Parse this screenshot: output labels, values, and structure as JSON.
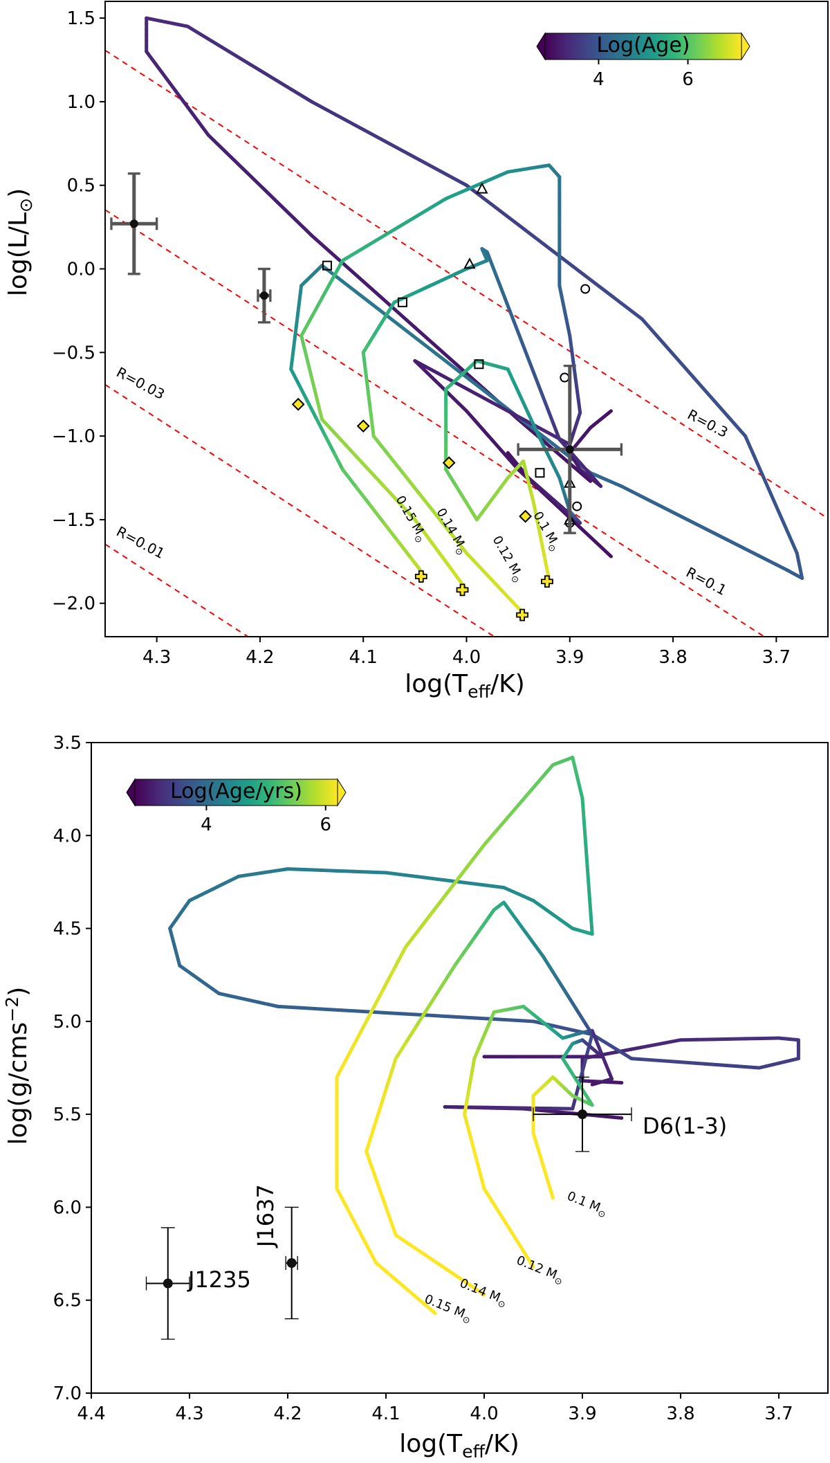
{
  "colors": {
    "viridis": [
      "#440154",
      "#482878",
      "#3e4989",
      "#31688e",
      "#26828e",
      "#1f9e89",
      "#35b779",
      "#6ece58",
      "#b5de2b",
      "#fde725"
    ],
    "iso_radius": "#ff0000",
    "errorbar_top": "#555555",
    "errorbar_bottom": "#000000"
  },
  "chart_data": [
    {
      "type": "line",
      "panel": "top",
      "title": "",
      "xlabel": "log(T",
      "xlabel_sub": "eff",
      "xlabel_tail": "/K)",
      "ylabel": "log(L/L",
      "ylabel_sun": "⊙",
      "ylabel_tail": ")",
      "xlim": [
        4.35,
        3.65
      ],
      "ylim": [
        -2.2,
        1.6
      ],
      "xticks": [
        4.3,
        4.2,
        4.1,
        4.0,
        3.9,
        3.8,
        3.7
      ],
      "xticklabels": [
        "4.3",
        "4.2",
        "4.1",
        "4.0",
        "3.9",
        "3.8",
        "3.7"
      ],
      "yticks": [
        1.5,
        1.0,
        0.5,
        0.0,
        -0.5,
        -1.0,
        -1.5,
        -2.0
      ],
      "yticklabels": [
        "1.5",
        "1.0",
        "0.5",
        "0.0",
        "−0.5",
        "−1.0",
        "−1.5",
        "−2.0"
      ],
      "colorbar": {
        "label": "Log(Age)",
        "ticks": [
          4,
          6
        ],
        "ticklabels": [
          "4",
          "6"
        ],
        "range": [
          2.8,
          7.2
        ]
      },
      "radius_lines": [
        {
          "label": "R=0.3",
          "R": 0.3
        },
        {
          "label": "R=0.1",
          "R": 0.1
        },
        {
          "label": "R=0.03",
          "R": 0.03
        },
        {
          "label": "R=0.01",
          "R": 0.01
        }
      ],
      "tracks": [
        {
          "name": "0.15 M☉",
          "label": "0.15 M",
          "points": [
            [
              3.88,
              -1.27,
              3.0
            ],
            [
              3.95,
              -0.9,
              3.05
            ],
            [
              4.05,
              -0.35,
              3.1
            ],
            [
              4.15,
              0.2,
              3.15
            ],
            [
              4.25,
              0.8,
              3.2
            ],
            [
              4.31,
              1.3,
              3.25
            ],
            [
              4.31,
              1.5,
              3.3
            ],
            [
              4.27,
              1.45,
              3.35
            ],
            [
              4.15,
              1.0,
              3.45
            ],
            [
              4.0,
              0.5,
              3.6
            ],
            [
              3.83,
              -0.3,
              3.8
            ],
            [
              3.73,
              -1.0,
              3.9
            ],
            [
              3.68,
              -1.7,
              4.0
            ],
            [
              3.675,
              -1.85,
              4.05
            ],
            [
              3.69,
              -1.8,
              4.1
            ],
            [
              3.85,
              -1.3,
              4.2
            ],
            [
              3.88,
              -1.22,
              4.3
            ],
            [
              4.14,
              0.02,
              4.6
            ],
            [
              4.16,
              -0.1,
              4.8
            ],
            [
              4.17,
              -0.6,
              5.1
            ],
            [
              4.12,
              -1.2,
              6.0
            ],
            [
              4.04,
              -1.84,
              6.8
            ]
          ]
        },
        {
          "name": "0.14 M☉",
          "label": "0.14 M",
          "points": [
            [
              3.86,
              -1.72,
              3.0
            ],
            [
              3.95,
              -1.2,
              3.05
            ],
            [
              4.0,
              -0.85,
              3.1
            ],
            [
              4.05,
              -0.55,
              3.15
            ],
            [
              3.9,
              -1.05,
              3.3
            ],
            [
              3.89,
              -0.86,
              3.5
            ],
            [
              3.9,
              -0.4,
              3.9
            ],
            [
              3.91,
              -0.1,
              4.2
            ],
            [
              3.91,
              0.55,
              4.5
            ],
            [
              3.92,
              0.62,
              4.7
            ],
            [
              3.96,
              0.58,
              5.0
            ],
            [
              4.02,
              0.42,
              5.3
            ],
            [
              4.12,
              0.05,
              5.7
            ],
            [
              4.16,
              -0.4,
              6.1
            ],
            [
              4.14,
              -0.9,
              6.4
            ],
            [
              4.05,
              -1.5,
              6.7
            ],
            [
              4.0,
              -1.92,
              6.9
            ]
          ]
        },
        {
          "name": "0.12 M☉",
          "label": "0.12 M",
          "points": [
            [
              3.86,
              -0.85,
              3.0
            ],
            [
              3.88,
              -0.95,
              3.05
            ],
            [
              3.9,
              -1.1,
              3.1
            ],
            [
              3.89,
              -1.2,
              3.15
            ],
            [
              3.87,
              -1.3,
              3.2
            ],
            [
              3.91,
              -1.02,
              3.4
            ],
            [
              3.93,
              -0.7,
              3.9
            ],
            [
              3.98,
              0.1,
              4.4
            ],
            [
              3.985,
              0.12,
              4.5
            ],
            [
              3.98,
              0.05,
              4.7
            ],
            [
              4.0,
              0.0,
              5.0
            ],
            [
              4.07,
              -0.2,
              5.4
            ],
            [
              4.1,
              -0.5,
              5.9
            ],
            [
              4.09,
              -1.0,
              6.3
            ],
            [
              4.0,
              -1.7,
              6.8
            ],
            [
              3.945,
              -2.06,
              7.0
            ]
          ]
        },
        {
          "name": "0.1 M☉",
          "label": "0.1 M",
          "points": [
            [
              3.96,
              -1.1,
              3.0
            ],
            [
              3.94,
              -1.25,
              3.1
            ],
            [
              3.89,
              -1.52,
              3.3
            ],
            [
              3.9,
              -1.45,
              4.3
            ],
            [
              3.91,
              -1.25,
              4.8
            ],
            [
              3.93,
              -1.0,
              5.0
            ],
            [
              3.96,
              -0.6,
              5.3
            ],
            [
              3.99,
              -0.55,
              5.5
            ],
            [
              4.02,
              -0.72,
              5.7
            ],
            [
              4.02,
              -1.2,
              6.1
            ],
            [
              3.99,
              -1.5,
              6.4
            ],
            [
              3.96,
              -1.25,
              6.5
            ],
            [
              3.945,
              -1.15,
              6.6
            ],
            [
              3.935,
              -1.4,
              6.8
            ],
            [
              3.92,
              -1.86,
              7.0
            ]
          ]
        }
      ],
      "markers": [
        {
          "shape": "triangle",
          "pts": [
            [
              3.985,
              0.48
            ],
            [
              3.997,
              0.03
            ],
            [
              3.9,
              -1.28
            ],
            [
              3.9,
              -1.5
            ]
          ]
        },
        {
          "shape": "circle",
          "pts": [
            [
              3.885,
              -0.12
            ],
            [
              3.905,
              -0.65
            ],
            [
              3.893,
              -1.42
            ],
            [
              3.9,
              -1.52
            ]
          ]
        },
        {
          "shape": "square",
          "pts": [
            [
              4.135,
              0.02
            ],
            [
              4.062,
              -0.2
            ],
            [
              3.988,
              -0.57
            ],
            [
              3.929,
              -1.22
            ]
          ]
        },
        {
          "shape": "diamond",
          "pts": [
            [
              4.163,
              -0.81
            ],
            [
              4.1,
              -0.94
            ],
            [
              4.017,
              -1.16
            ],
            [
              3.943,
              -1.48
            ]
          ]
        },
        {
          "shape": "plus",
          "pts": [
            [
              4.044,
              -1.84
            ],
            [
              4.004,
              -1.92
            ],
            [
              3.946,
              -2.07
            ],
            [
              3.922,
              -1.87
            ]
          ]
        }
      ],
      "errorbars": [
        {
          "x": 4.322,
          "y": 0.27,
          "xerr": 0.022,
          "yerr": 0.3
        },
        {
          "x": 4.196,
          "y": -0.16,
          "xerr": 0.006,
          "yerr": 0.16
        },
        {
          "x": 3.9,
          "y": -1.08,
          "xerr": 0.05,
          "yerr": 0.5
        }
      ]
    },
    {
      "type": "line",
      "panel": "bottom",
      "title": "",
      "xlabel": "log(T",
      "xlabel_sub": "eff",
      "xlabel_tail": "/K)",
      "ylabel": "log(g/cms",
      "ylabel_sup": "−2",
      "ylabel_tail": ")",
      "xlim": [
        4.4,
        3.65
      ],
      "ylim": [
        7.0,
        3.5
      ],
      "xticks": [
        4.4,
        4.3,
        4.2,
        4.1,
        4.0,
        3.9,
        3.8,
        3.7
      ],
      "xticklabels": [
        "4.4",
        "4.3",
        "4.2",
        "4.1",
        "4.0",
        "3.9",
        "3.8",
        "3.7"
      ],
      "yticks": [
        3.5,
        4.0,
        4.5,
        5.0,
        5.5,
        6.0,
        6.5,
        7.0
      ],
      "yticklabels": [
        "3.5",
        "4.0",
        "4.5",
        "5.0",
        "5.5",
        "6.0",
        "6.5",
        "7.0"
      ],
      "colorbar": {
        "label": "Log(Age/yrs)",
        "ticks": [
          4,
          6
        ],
        "ticklabels": [
          "4",
          "6"
        ],
        "range": [
          2.8,
          6.2
        ]
      },
      "tracks": [
        {
          "name": "0.15 M☉",
          "label": "0.15 M",
          "points": [
            [
              3.86,
              5.33,
              3.0
            ],
            [
              3.9,
              5.32,
              3.05
            ],
            [
              3.9,
              5.2,
              3.1
            ],
            [
              3.8,
              5.1,
              3.2
            ],
            [
              3.7,
              5.09,
              3.3
            ],
            [
              3.68,
              5.1,
              3.35
            ],
            [
              3.68,
              5.2,
              3.4
            ],
            [
              3.72,
              5.25,
              3.45
            ],
            [
              3.85,
              5.2,
              3.5
            ],
            [
              3.89,
              5.07,
              3.6
            ],
            [
              3.95,
              5.0,
              3.7
            ],
            [
              4.08,
              4.96,
              3.8
            ],
            [
              4.21,
              4.92,
              3.85
            ],
            [
              4.27,
              4.85,
              3.9
            ],
            [
              4.31,
              4.7,
              3.95
            ],
            [
              4.32,
              4.5,
              4.0
            ],
            [
              4.3,
              4.35,
              4.1
            ],
            [
              4.25,
              4.22,
              4.15
            ],
            [
              4.2,
              4.18,
              4.2
            ],
            [
              4.1,
              4.2,
              4.3
            ],
            [
              3.98,
              4.28,
              4.4
            ],
            [
              3.95,
              4.35,
              4.5
            ],
            [
              3.91,
              4.5,
              4.6
            ],
            [
              3.89,
              4.53,
              4.8
            ],
            [
              3.9,
              3.8,
              5.0
            ],
            [
              3.91,
              3.58,
              5.2
            ],
            [
              3.93,
              3.62,
              5.3
            ],
            [
              4.0,
              4.05,
              5.6
            ],
            [
              4.08,
              4.6,
              5.9
            ],
            [
              4.15,
              5.3,
              6.2
            ],
            [
              4.15,
              5.9,
              6.4
            ],
            [
              4.11,
              6.3,
              6.6
            ],
            [
              4.05,
              6.57,
              6.8
            ]
          ]
        },
        {
          "name": "0.14 M☉",
          "label": "0.14 M",
          "points": [
            [
              3.86,
              5.52,
              3.0
            ],
            [
              3.96,
              5.47,
              3.05
            ],
            [
              4.04,
              5.46,
              3.1
            ],
            [
              3.91,
              5.47,
              3.3
            ],
            [
              3.89,
              5.07,
              3.6
            ],
            [
              3.94,
              4.65,
              4.3
            ],
            [
              3.98,
              4.36,
              4.7
            ],
            [
              3.99,
              4.4,
              5.0
            ],
            [
              4.03,
              4.7,
              5.5
            ],
            [
              4.09,
              5.2,
              6.0
            ],
            [
              4.12,
              5.7,
              6.3
            ],
            [
              4.09,
              6.15,
              6.6
            ],
            [
              4.0,
              6.47,
              6.8
            ]
          ]
        },
        {
          "name": "0.12 M☉",
          "label": "0.12 M",
          "points": [
            [
              3.89,
              5.34,
              3.0
            ],
            [
              3.87,
              5.31,
              3.1
            ],
            [
              3.89,
              5.05,
              3.3
            ],
            [
              3.9,
              5.06,
              4.0
            ],
            [
              3.92,
              5.09,
              4.6
            ],
            [
              3.96,
              4.92,
              5.2
            ],
            [
              3.99,
              4.95,
              5.5
            ],
            [
              4.01,
              5.2,
              5.8
            ],
            [
              4.02,
              5.5,
              6.1
            ],
            [
              4.0,
              5.9,
              6.4
            ],
            [
              3.95,
              6.32,
              6.8
            ]
          ]
        },
        {
          "name": "0.1 M☉",
          "label": "0.1 M",
          "points": [
            [
              4.0,
              5.19,
              3.0
            ],
            [
              3.94,
              5.19,
              3.05
            ],
            [
              3.88,
              5.19,
              3.1
            ],
            [
              3.9,
              5.1,
              3.5
            ],
            [
              3.91,
              5.12,
              4.5
            ],
            [
              3.92,
              5.2,
              5.0
            ],
            [
              3.89,
              5.45,
              5.2
            ],
            [
              3.91,
              5.4,
              5.5
            ],
            [
              3.93,
              5.3,
              5.9
            ],
            [
              3.95,
              5.4,
              6.1
            ],
            [
              3.95,
              5.6,
              6.3
            ],
            [
              3.93,
              5.95,
              6.6
            ]
          ]
        }
      ],
      "objects": [
        {
          "name": "J1235",
          "x": 4.322,
          "y": 6.41,
          "xerr": 0.022,
          "yerr": 0.3
        },
        {
          "name": "J1637",
          "x": 4.196,
          "y": 6.3,
          "xerr": 0.006,
          "yerr": 0.3
        },
        {
          "name": "D6(1-3)",
          "x": 3.9,
          "y": 5.5,
          "xerr": 0.05,
          "yerr": 0.2
        }
      ]
    }
  ]
}
